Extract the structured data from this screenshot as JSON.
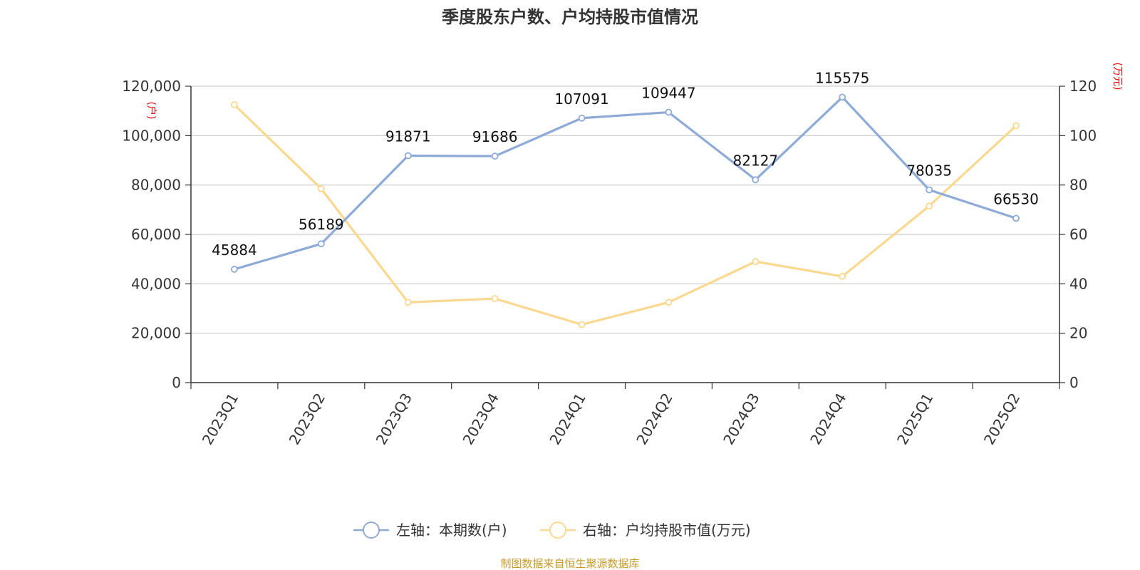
{
  "chart_data": {
    "type": "line",
    "title": "季度股东户数、户均持股市值情况",
    "categories": [
      "2023Q1",
      "2023Q2",
      "2023Q3",
      "2023Q4",
      "2024Q1",
      "2024Q2",
      "2024Q3",
      "2024Q4",
      "2025Q1",
      "2025Q2"
    ],
    "left_axis": {
      "unit": "(户)",
      "ylim": [
        0,
        120000
      ],
      "ticks": [
        0,
        20000,
        40000,
        60000,
        80000,
        100000,
        120000
      ],
      "tick_labels": [
        "0",
        "20,000",
        "40,000",
        "60,000",
        "80,000",
        "100,000",
        "120,000"
      ]
    },
    "right_axis": {
      "unit": "(万元)",
      "ylim": [
        0,
        120
      ],
      "ticks": [
        0,
        20,
        40,
        60,
        80,
        100,
        120
      ],
      "tick_labels": [
        "0",
        "20",
        "40",
        "60",
        "80",
        "100",
        "120"
      ]
    },
    "series": [
      {
        "name": "左轴：本期数(户)",
        "axis": "left",
        "color": "#8eaad8",
        "values": [
          45884,
          56189,
          91871,
          91686,
          107091,
          109447,
          82127,
          115575,
          78035,
          66530
        ],
        "data_labels": [
          "45884",
          "56189",
          "91871",
          "91686",
          "107091",
          "109447",
          "82127",
          "115575",
          "78035",
          "66530"
        ]
      },
      {
        "name": "右轴：户均持股市值(万元)",
        "axis": "right",
        "color": "#fbd88f",
        "values": [
          112.5,
          78.5,
          32.5,
          34.0,
          23.5,
          32.5,
          49.0,
          43.0,
          71.5,
          104.0
        ]
      }
    ],
    "grid": true,
    "legend_position": "bottom-center",
    "source": "制图数据来自恒生聚源数据库"
  }
}
